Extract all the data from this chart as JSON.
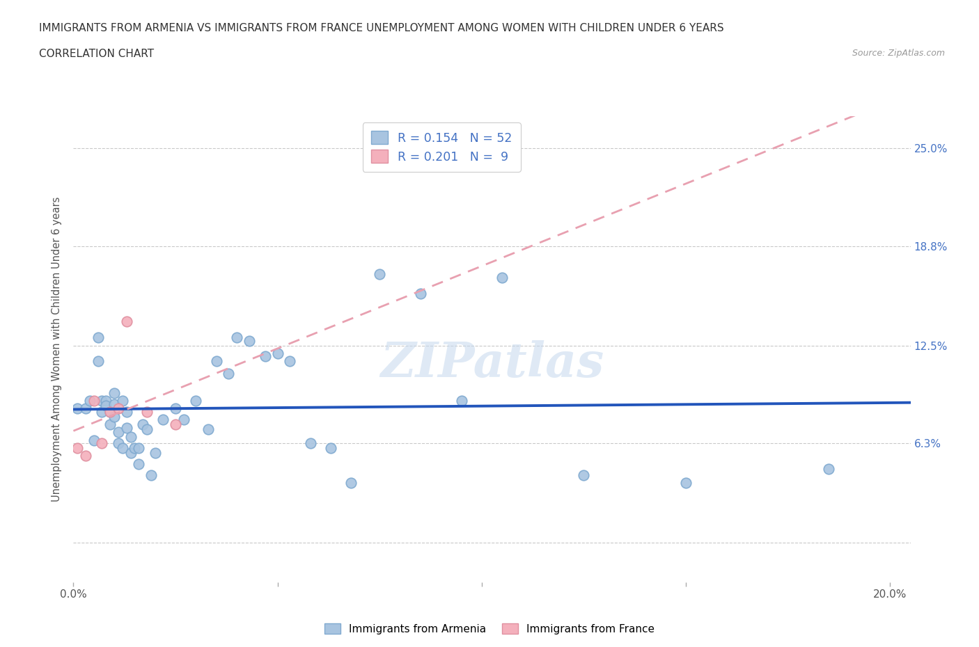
{
  "title_line1": "IMMIGRANTS FROM ARMENIA VS IMMIGRANTS FROM FRANCE UNEMPLOYMENT AMONG WOMEN WITH CHILDREN UNDER 6 YEARS",
  "title_line2": "CORRELATION CHART",
  "source_text": "Source: ZipAtlas.com",
  "ylabel": "Unemployment Among Women with Children Under 6 years",
  "xlim": [
    0.0,
    0.205
  ],
  "ylim": [
    -0.025,
    0.27
  ],
  "xticks": [
    0.0,
    0.05,
    0.1,
    0.15,
    0.2
  ],
  "xticklabels": [
    "0.0%",
    "",
    "",
    "",
    "20.0%"
  ],
  "ytick_positions": [
    0.0,
    0.063,
    0.125,
    0.188,
    0.25
  ],
  "ytick_labels": [
    "",
    "6.3%",
    "12.5%",
    "18.8%",
    "25.0%"
  ],
  "armenia_color": "#a8c4e0",
  "france_color": "#f4b0bc",
  "armenia_line_color": "#2255bb",
  "france_line_color": "#e08090",
  "france_line_dashed_color": "#e8a0b0",
  "R_armenia": 0.154,
  "N_armenia": 52,
  "R_france": 0.201,
  "N_france": 9,
  "watermark": "ZIPatlas",
  "armenia_x": [
    0.001,
    0.003,
    0.004,
    0.005,
    0.006,
    0.006,
    0.007,
    0.007,
    0.008,
    0.008,
    0.009,
    0.009,
    0.01,
    0.01,
    0.01,
    0.011,
    0.011,
    0.012,
    0.012,
    0.013,
    0.013,
    0.014,
    0.014,
    0.015,
    0.016,
    0.016,
    0.017,
    0.018,
    0.019,
    0.02,
    0.022,
    0.025,
    0.027,
    0.03,
    0.033,
    0.035,
    0.038,
    0.04,
    0.043,
    0.047,
    0.05,
    0.053,
    0.058,
    0.063,
    0.068,
    0.075,
    0.085,
    0.095,
    0.105,
    0.125,
    0.15,
    0.185
  ],
  "armenia_y": [
    0.085,
    0.085,
    0.09,
    0.065,
    0.13,
    0.115,
    0.09,
    0.083,
    0.09,
    0.087,
    0.083,
    0.075,
    0.095,
    0.088,
    0.08,
    0.07,
    0.063,
    0.09,
    0.06,
    0.083,
    0.073,
    0.067,
    0.057,
    0.06,
    0.06,
    0.05,
    0.075,
    0.072,
    0.043,
    0.057,
    0.078,
    0.085,
    0.078,
    0.09,
    0.072,
    0.115,
    0.107,
    0.13,
    0.128,
    0.118,
    0.12,
    0.115,
    0.063,
    0.06,
    0.038,
    0.17,
    0.158,
    0.09,
    0.168,
    0.043,
    0.038,
    0.047
  ],
  "france_x": [
    0.001,
    0.003,
    0.005,
    0.007,
    0.009,
    0.011,
    0.013,
    0.018,
    0.025
  ],
  "france_y": [
    0.06,
    0.055,
    0.09,
    0.063,
    0.083,
    0.085,
    0.14,
    0.083,
    0.075
  ],
  "grid_color": "#bbbbbb",
  "bg_color": "#ffffff",
  "title_color": "#333333",
  "label_color": "#4472c4",
  "armenia_scatter_edge": "#80aad0",
  "france_scatter_edge": "#e090a0"
}
